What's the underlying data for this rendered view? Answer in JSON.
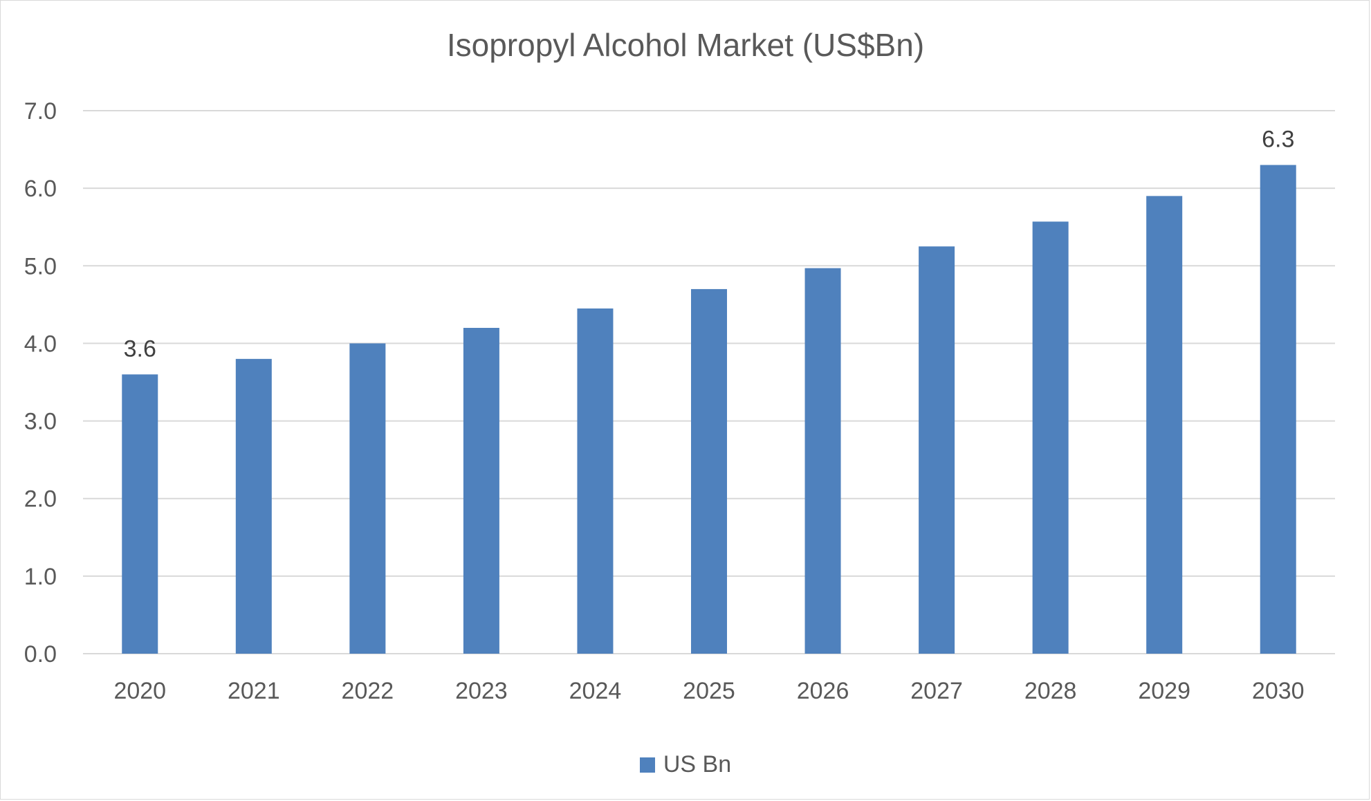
{
  "chart_data": {
    "type": "bar",
    "title": "Isopropyl Alcohol  Market (US$Bn)",
    "categories": [
      "2020",
      "2021",
      "2022",
      "2023",
      "2024",
      "2025",
      "2026",
      "2027",
      "2028",
      "2029",
      "2030"
    ],
    "series": [
      {
        "name": "US Bn",
        "values": [
          3.6,
          3.8,
          4.0,
          4.2,
          4.45,
          4.7,
          4.97,
          5.25,
          5.57,
          5.9,
          6.3
        ],
        "color": "#4f81bd"
      }
    ],
    "data_labels": [
      {
        "category": "2020",
        "text": "3.6"
      },
      {
        "category": "2030",
        "text": "6.3"
      }
    ],
    "y_ticks": [
      "0.0",
      "1.0",
      "2.0",
      "3.0",
      "4.0",
      "5.0",
      "6.0",
      "7.0"
    ],
    "ylim": [
      0,
      7
    ],
    "grid": true,
    "legend_position": "bottom",
    "xlabel": "",
    "ylabel": ""
  }
}
